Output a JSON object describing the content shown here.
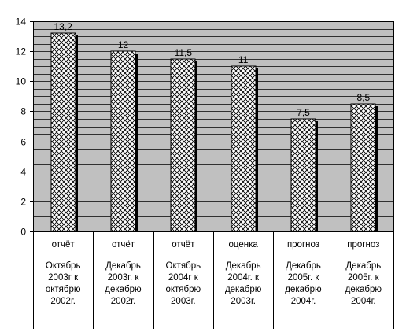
{
  "chart_data": {
    "type": "bar",
    "categories": [
      {
        "label": "отчёт",
        "period": "Октябрь\n2003г к\nоктябрю\n2002г."
      },
      {
        "label": "отчёт",
        "period": "Декабрь\n2003г. к\nдекабрю\n2002г."
      },
      {
        "label": "отчёт",
        "period": "Октябрь\n2004г к\nоктябрю\n2003г."
      },
      {
        "label": "оценка",
        "period": "Декабрь\n2004г. к\nдекабрю\n2003г."
      },
      {
        "label": "прогноз",
        "period": "Декабрь\n2005г. к\nдекабрю\n2004г."
      },
      {
        "label": "прогноз",
        "period": "Декабрь\n2005г. к\nдекабрю\n2004г."
      }
    ],
    "values": [
      13.2,
      12,
      11.5,
      11,
      7.5,
      8.5
    ],
    "value_labels": [
      "13,2",
      "12",
      "11,5",
      "11",
      "7,5",
      "8,5"
    ],
    "ylim": [
      0,
      14
    ],
    "yticks": [
      "0",
      "2",
      "4",
      "6",
      "8",
      "10",
      "12",
      "14"
    ],
    "grid": true,
    "plot_background": "#c0c0c0",
    "bar_pattern": "crosshatch",
    "title": "",
    "xlabel": "",
    "ylabel": ""
  }
}
